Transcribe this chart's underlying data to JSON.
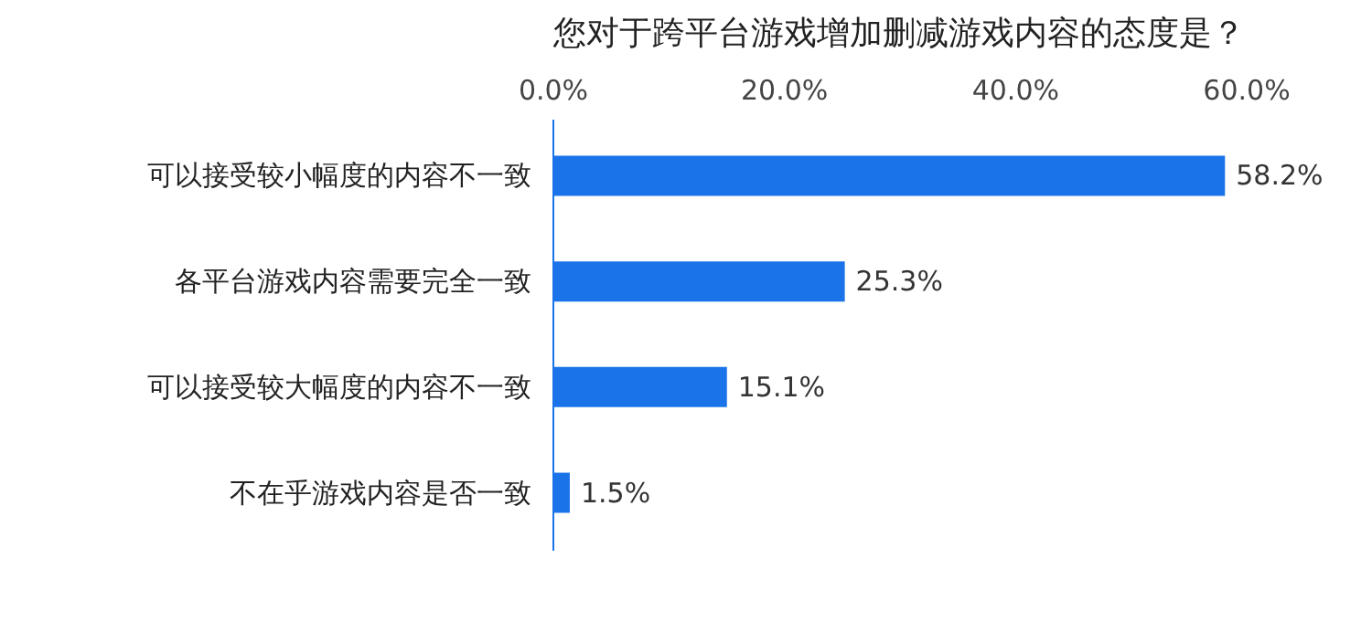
{
  "chart_data": {
    "type": "bar",
    "orientation": "horizontal",
    "title": "您对于跨平台游戏增加删减游戏内容的态度是？",
    "categories": [
      "可以接受较小幅度的内容不一致",
      "各平台游戏内容需要完全一致",
      "可以接受较大幅度的内容不一致",
      "不在乎游戏内容是否一致"
    ],
    "values": [
      58.2,
      25.3,
      15.1,
      1.5
    ],
    "value_labels": [
      "58.2%",
      "25.3%",
      "15.1%",
      "1.5%"
    ],
    "color": "#1a73e8",
    "xlim": [
      0,
      60
    ],
    "xticks": [
      {
        "value": 0,
        "label": "0.0%"
      },
      {
        "value": 20,
        "label": "20.0%"
      },
      {
        "value": 40,
        "label": "40.0%"
      },
      {
        "value": 60,
        "label": "60.0%"
      }
    ],
    "grid": false
  }
}
